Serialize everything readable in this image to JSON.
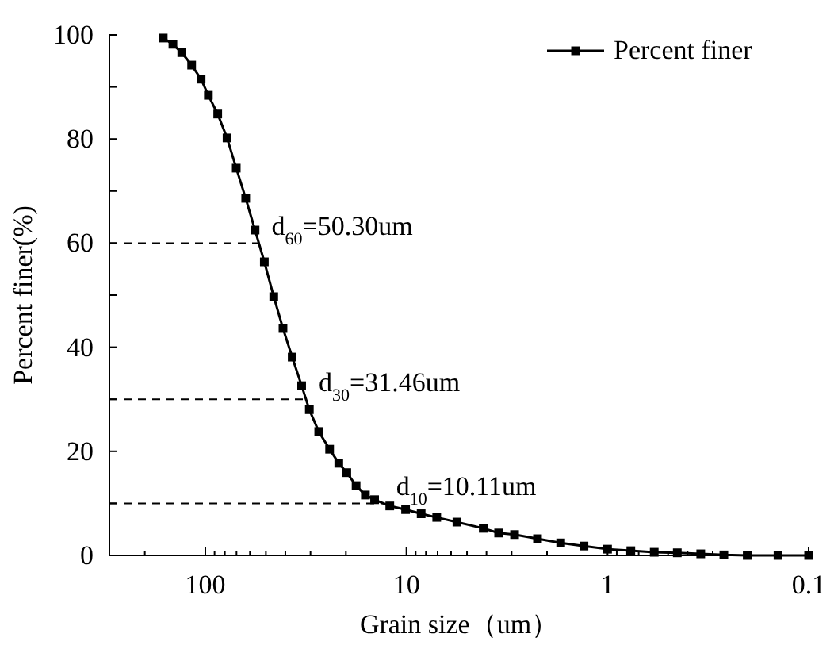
{
  "chart_data": {
    "type": "line",
    "xlabel": "Grain size（um）",
    "ylabel": "Percent finer(%)",
    "log": "x",
    "xlim": [
      300,
      0.1
    ],
    "xticks": [
      {
        "value": 200,
        "label": null
      },
      {
        "value": 100,
        "label": "100"
      },
      {
        "value": 90,
        "label": null
      },
      {
        "value": 80,
        "label": null
      },
      {
        "value": 70,
        "label": null
      },
      {
        "value": 60,
        "label": null
      },
      {
        "value": 50,
        "label": null
      },
      {
        "value": 40,
        "label": null
      },
      {
        "value": 30,
        "label": null
      },
      {
        "value": 20,
        "label": null
      },
      {
        "value": 10,
        "label": "10"
      },
      {
        "value": 9,
        "label": null
      },
      {
        "value": 8,
        "label": null
      },
      {
        "value": 7,
        "label": null
      },
      {
        "value": 6,
        "label": null
      },
      {
        "value": 5,
        "label": null
      },
      {
        "value": 4,
        "label": null
      },
      {
        "value": 3,
        "label": null
      },
      {
        "value": 2,
        "label": null
      },
      {
        "value": 1,
        "label": "1"
      },
      {
        "value": 0.9,
        "label": null
      },
      {
        "value": 0.8,
        "label": null
      },
      {
        "value": 0.7,
        "label": null
      },
      {
        "value": 0.6,
        "label": null
      },
      {
        "value": 0.5,
        "label": null
      },
      {
        "value": 0.4,
        "label": null
      },
      {
        "value": 0.3,
        "label": null
      },
      {
        "value": 0.2,
        "label": null
      },
      {
        "value": 0.1,
        "label": "0.1"
      }
    ],
    "ylim": [
      0,
      100
    ],
    "yticks": [
      0,
      {
        "value": 10,
        "label": null
      },
      20,
      {
        "value": 30,
        "label": null
      },
      40,
      {
        "value": 50,
        "label": null
      },
      60,
      {
        "value": 70,
        "label": null
      },
      80,
      {
        "value": 90,
        "label": null
      },
      100
    ],
    "marker": "square",
    "line_style": "solid",
    "legend": "top right",
    "grid": false,
    "series": [
      {
        "name": "Percent finer",
        "color": "#000000",
        "x": [
          162,
          145,
          131,
          117,
          105,
          96.6,
          86.8,
          78,
          70.2,
          63,
          56.6,
          50.9,
          45.7,
          41.1,
          37,
          33.2,
          30.4,
          27.3,
          24.1,
          21.7,
          19.8,
          17.8,
          16,
          14.4,
          12.1,
          10.1,
          8.45,
          7.07,
          5.61,
          4.15,
          3.48,
          2.9,
          2.23,
          1.71,
          1.31,
          1,
          0.766,
          0.586,
          0.45,
          0.344,
          0.264,
          0.202,
          0.142,
          0.1
        ],
        "values": [
          99.4,
          98.2,
          96.6,
          94.2,
          91.5,
          88.4,
          84.8,
          80.2,
          74.4,
          68.6,
          62.5,
          56.4,
          49.7,
          43.6,
          38.1,
          32.6,
          28,
          23.8,
          20.4,
          17.7,
          15.9,
          13.4,
          11.6,
          10.7,
          9.5,
          8.8,
          8,
          7.3,
          6.4,
          5.2,
          4.3,
          4,
          3.2,
          2.4,
          1.8,
          1.2,
          0.9,
          0.6,
          0.5,
          0.3,
          0.1,
          0,
          0,
          0
        ]
      }
    ],
    "ref_lines": [
      {
        "axis": "y",
        "value": 60,
        "label": "d$_{60}$=50.30um",
        "line_style": "dashed",
        "color": "#000000"
      },
      {
        "axis": "y",
        "value": 30,
        "label": "d$_{30}$=31.46um",
        "line_style": "dashed",
        "color": "#000000"
      },
      {
        "axis": "y",
        "value": 10,
        "label": "d$_{10}$=10.11um",
        "line_style": "dashed",
        "color": "#000000"
      }
    ]
  }
}
